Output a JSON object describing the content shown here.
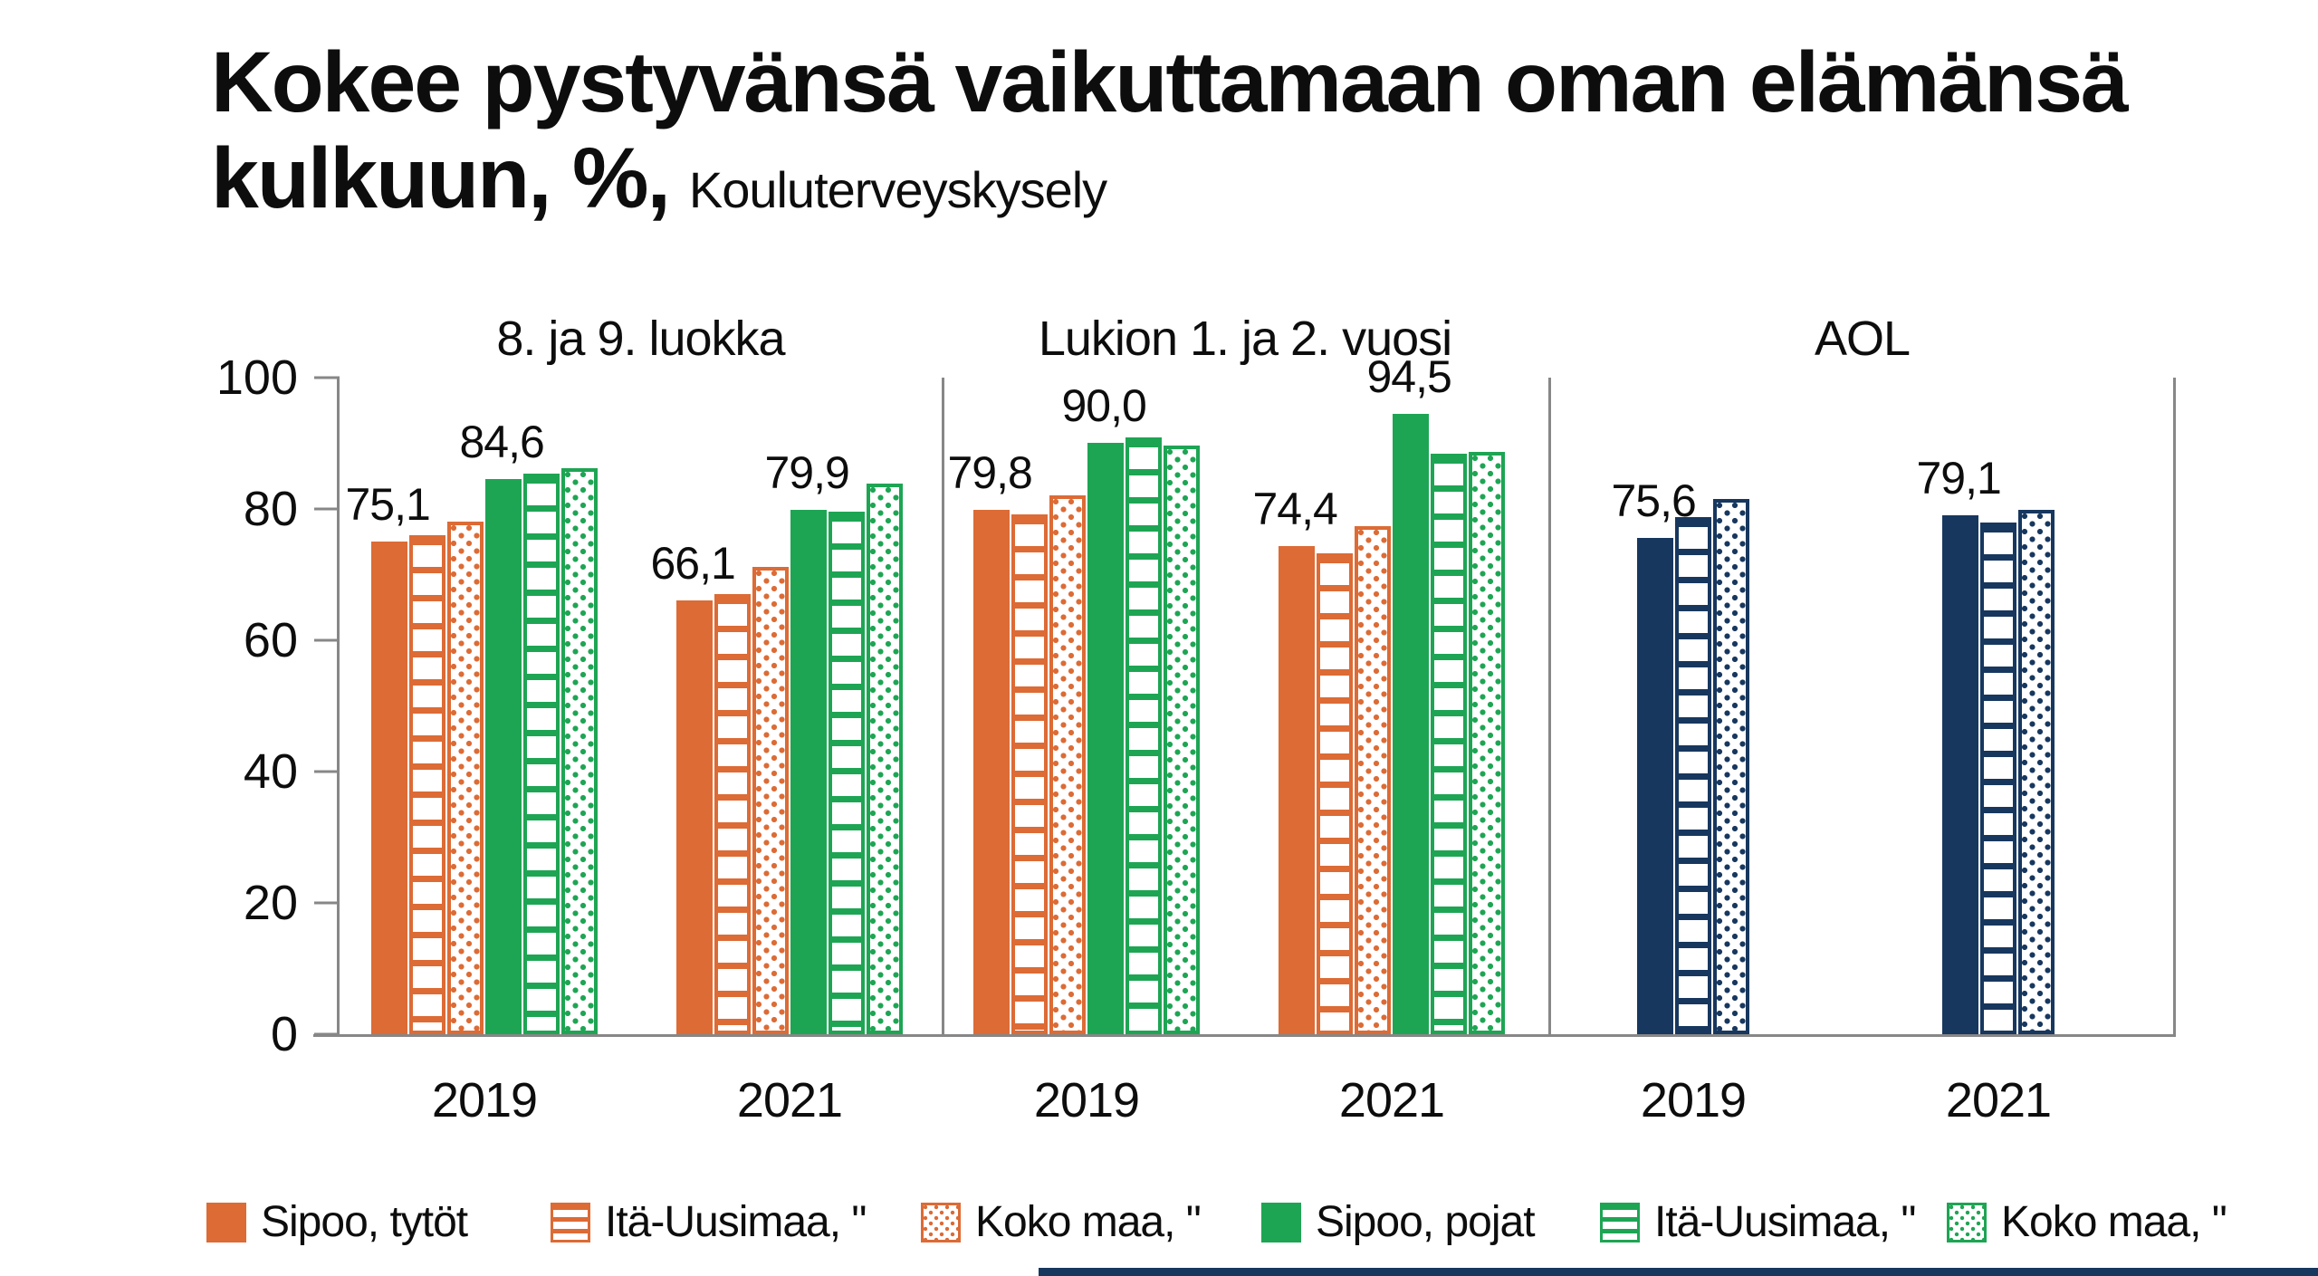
{
  "header": {
    "title_line1": "Kokee pystyvänsä vaikuttamaan oman elämänsä",
    "title_line2": "kulkuun, %,",
    "subtitle": "Kouluterveyskysely"
  },
  "chart_data": {
    "type": "bar",
    "title": "Kokee pystyvänsä vaikuttamaan oman elämänsä kulkuun, %, Kouluterveyskysely",
    "ylabel": "",
    "xlabel": "",
    "ylim": [
      0,
      100
    ],
    "yticks": [
      0,
      20,
      40,
      60,
      80,
      100
    ],
    "grid": false,
    "legend_position": "bottom",
    "colors": {
      "orange": "#DC6B35",
      "green": "#1EA554",
      "navy": "#17375E",
      "axis": "#878787"
    },
    "legend": [
      {
        "label": "Sipoo, tytöt",
        "color": "orange",
        "pattern": "solid"
      },
      {
        "label": "Itä-Uusimaa, \"",
        "color": "orange",
        "pattern": "hlines"
      },
      {
        "label": "Koko maa, \"",
        "color": "orange",
        "pattern": "dots"
      },
      {
        "label": "Sipoo, pojat",
        "color": "green",
        "pattern": "solid"
      },
      {
        "label": "Itä-Uusimaa, \"",
        "color": "green",
        "pattern": "hlines"
      },
      {
        "label": "Koko maa, \"",
        "color": "green",
        "pattern": "dots"
      }
    ],
    "panels": [
      {
        "title": "8. ja 9. luokka",
        "groups": [
          {
            "category": "2019",
            "bars": [
              {
                "series": "Sipoo, tytöt",
                "color": "orange",
                "pattern": "solid",
                "value": 75.1,
                "label": "75,1"
              },
              {
                "series": "Itä-Uusimaa, tytöt",
                "color": "orange",
                "pattern": "hlines",
                "value": 76.0
              },
              {
                "series": "Koko maa, tytöt",
                "color": "orange",
                "pattern": "dots",
                "value": 78.0
              },
              {
                "series": "Sipoo, pojat",
                "color": "green",
                "pattern": "solid",
                "value": 84.6,
                "label": "84,6"
              },
              {
                "series": "Itä-Uusimaa, pojat",
                "color": "green",
                "pattern": "hlines",
                "value": 85.4
              },
              {
                "series": "Koko maa, pojat",
                "color": "green",
                "pattern": "dots",
                "value": 86.2
              }
            ]
          },
          {
            "category": "2021",
            "bars": [
              {
                "series": "Sipoo, tytöt",
                "color": "orange",
                "pattern": "solid",
                "value": 66.1,
                "label": "66,1"
              },
              {
                "series": "Itä-Uusimaa, tytöt",
                "color": "orange",
                "pattern": "hlines",
                "value": 67.0
              },
              {
                "series": "Koko maa, tytöt",
                "color": "orange",
                "pattern": "dots",
                "value": 71.2
              },
              {
                "series": "Sipoo, pojat",
                "color": "green",
                "pattern": "solid",
                "value": 79.9,
                "label": "79,9"
              },
              {
                "series": "Itä-Uusimaa, pojat",
                "color": "green",
                "pattern": "hlines",
                "value": 79.6
              },
              {
                "series": "Koko maa, pojat",
                "color": "green",
                "pattern": "dots",
                "value": 83.9
              }
            ]
          }
        ]
      },
      {
        "title": "Lukion 1. ja 2. vuosi",
        "groups": [
          {
            "category": "2019",
            "bars": [
              {
                "series": "Sipoo, tytöt",
                "color": "orange",
                "pattern": "solid",
                "value": 79.8,
                "label": "79,8"
              },
              {
                "series": "Itä-Uusimaa, tytöt",
                "color": "orange",
                "pattern": "hlines",
                "value": 79.2
              },
              {
                "series": "Koko maa, tytöt",
                "color": "orange",
                "pattern": "dots",
                "value": 82.0
              },
              {
                "series": "Sipoo, pojat",
                "color": "green",
                "pattern": "solid",
                "value": 90.0,
                "label": "90,0"
              },
              {
                "series": "Itä-Uusimaa, pojat",
                "color": "green",
                "pattern": "hlines",
                "value": 90.9
              },
              {
                "series": "Koko maa, pojat",
                "color": "green",
                "pattern": "dots",
                "value": 89.6
              }
            ]
          },
          {
            "category": "2021",
            "bars": [
              {
                "series": "Sipoo, tytöt",
                "color": "orange",
                "pattern": "solid",
                "value": 74.4,
                "label": "74,4"
              },
              {
                "series": "Itä-Uusimaa, tytöt",
                "color": "orange",
                "pattern": "hlines",
                "value": 73.3
              },
              {
                "series": "Koko maa, tytöt",
                "color": "orange",
                "pattern": "dots",
                "value": 77.4
              },
              {
                "series": "Sipoo, pojat",
                "color": "green",
                "pattern": "solid",
                "value": 94.5,
                "label": "94,5"
              },
              {
                "series": "Itä-Uusimaa, pojat",
                "color": "green",
                "pattern": "hlines",
                "value": 88.4
              },
              {
                "series": "Koko maa, pojat",
                "color": "green",
                "pattern": "dots",
                "value": 88.7
              }
            ]
          }
        ]
      },
      {
        "title": "AOL",
        "groups": [
          {
            "category": "2019",
            "bars": [
              {
                "series": "Sipoo",
                "color": "navy",
                "pattern": "solid",
                "value": 75.6,
                "label": "75,6"
              },
              {
                "series": "Itä-Uusimaa, \"",
                "color": "navy",
                "pattern": "hlines",
                "value": 78.8
              },
              {
                "series": "Koko maa, \"",
                "color": "navy",
                "pattern": "dots",
                "value": 81.5
              }
            ]
          },
          {
            "category": "2021",
            "bars": [
              {
                "series": "Sipoo",
                "color": "navy",
                "pattern": "solid",
                "value": 79.1,
                "label": "79,1"
              },
              {
                "series": "Itä-Uusimaa, \"",
                "color": "navy",
                "pattern": "hlines",
                "value": 77.9
              },
              {
                "series": "Koko maa, \"",
                "color": "navy",
                "pattern": "dots",
                "value": 79.9
              }
            ]
          }
        ]
      }
    ]
  }
}
